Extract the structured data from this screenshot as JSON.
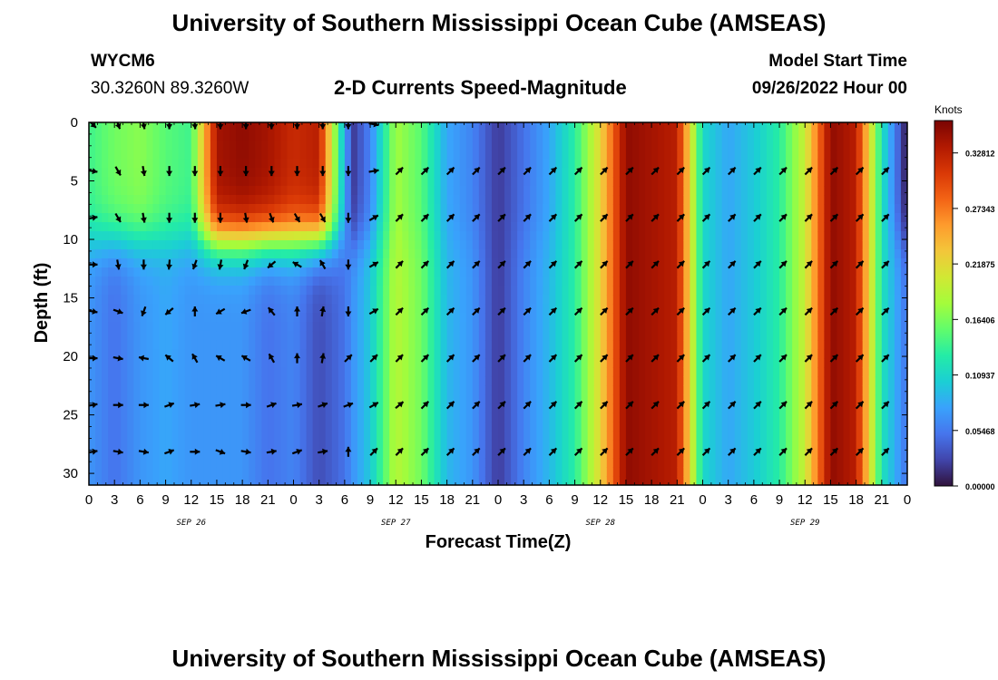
{
  "title": "University of Southern Mississippi Ocean Cube (AMSEAS)",
  "station": {
    "id": "WYCM6",
    "coords": "30.3260N  89.3260W"
  },
  "subtitle": "2-D Currents Speed-Magnitude",
  "model_start": {
    "label": "Model Start Time",
    "value": "09/26/2022 Hour 00"
  },
  "footer_title": "University of Southern Mississippi Ocean Cube (AMSEAS)",
  "colorbar": {
    "unit": "Knots",
    "min": 0.0,
    "max": 0.36,
    "tick_labels": [
      "0.32812",
      "0.27343",
      "0.21875",
      "0.16406",
      "0.10937",
      "0.05468",
      "0.00000"
    ],
    "tick_values": [
      0.32812,
      0.27343,
      0.21875,
      0.16406,
      0.10937,
      0.05468,
      0.0
    ],
    "colors": [
      "#30123b",
      "#4145ab",
      "#4675ed",
      "#39a2fc",
      "#1bcfd4",
      "#24eca6",
      "#61fc6c",
      "#a4fc3b",
      "#d1e834",
      "#f3c63a",
      "#fe9b2d",
      "#f36315",
      "#d93806",
      "#b11901",
      "#7a0403"
    ]
  },
  "chart_data": {
    "type": "heatmap",
    "title": "2-D Currents Speed-Magnitude",
    "xlabel": "Forecast Time(Z)",
    "ylabel": "Depth (ft)",
    "xlim": [
      0,
      96
    ],
    "ylim": [
      31,
      0
    ],
    "x_tick_values": [
      0,
      3,
      6,
      9,
      12,
      15,
      18,
      21,
      24,
      27,
      30,
      33,
      36,
      39,
      42,
      45,
      48,
      51,
      54,
      57,
      60,
      63,
      66,
      69,
      72,
      75,
      78,
      81,
      84,
      87,
      90,
      93,
      96
    ],
    "x_tick_labels": [
      "0",
      "3",
      "6",
      "9",
      "12",
      "15",
      "18",
      "21",
      "0",
      "3",
      "6",
      "9",
      "12",
      "15",
      "18",
      "21",
      "0",
      "3",
      "6",
      "9",
      "12",
      "15",
      "18",
      "21",
      "0",
      "3",
      "6",
      "9",
      "12",
      "15",
      "18",
      "21",
      "0"
    ],
    "y_tick_values": [
      0,
      5,
      10,
      15,
      20,
      25,
      30
    ],
    "y_tick_labels": [
      "0",
      "5",
      "10",
      "15",
      "20",
      "25",
      "30"
    ],
    "date_labels": [
      {
        "label": "SEP 26",
        "hour": 12
      },
      {
        "label": "SEP 27",
        "hour": 36
      },
      {
        "label": "SEP 28",
        "hour": 60
      },
      {
        "label": "SEP 29",
        "hour": 84
      }
    ],
    "units": "Knots",
    "speed_profile_surface_layer": {
      "depth_range_ft": [
        0,
        10
      ],
      "hours": [
        0,
        3,
        6,
        9,
        12,
        15,
        18,
        21,
        24,
        27,
        30,
        31,
        33,
        36,
        39,
        42,
        45,
        48,
        51,
        54,
        57,
        60,
        63,
        66,
        69,
        72,
        75,
        78,
        81,
        84,
        87,
        90,
        93,
        96
      ],
      "speed_kn": [
        0.14,
        0.16,
        0.17,
        0.15,
        0.14,
        0.34,
        0.35,
        0.34,
        0.32,
        0.33,
        0.08,
        0.02,
        0.06,
        0.18,
        0.15,
        0.08,
        0.06,
        0.02,
        0.05,
        0.08,
        0.13,
        0.22,
        0.35,
        0.34,
        0.33,
        0.11,
        0.08,
        0.1,
        0.13,
        0.2,
        0.35,
        0.33,
        0.12,
        0.0
      ]
    },
    "speed_profile_lower_layer": {
      "depth_range_ft": [
        10,
        31
      ],
      "hours": [
        0,
        3,
        6,
        9,
        12,
        15,
        18,
        21,
        24,
        27,
        30,
        31,
        33,
        36,
        39,
        42,
        45,
        48,
        51,
        54,
        57,
        60,
        63,
        66,
        69,
        72,
        75,
        78,
        81,
        84,
        87,
        90,
        93,
        96
      ],
      "speed_kn": [
        0.07,
        0.05,
        0.07,
        0.08,
        0.07,
        0.07,
        0.07,
        0.05,
        0.06,
        0.03,
        0.05,
        0.07,
        0.1,
        0.19,
        0.16,
        0.09,
        0.07,
        0.02,
        0.06,
        0.09,
        0.13,
        0.22,
        0.35,
        0.34,
        0.33,
        0.11,
        0.08,
        0.1,
        0.13,
        0.2,
        0.35,
        0.33,
        0.12,
        0.05
      ]
    },
    "vector_depths_ft": [
      0,
      4,
      8,
      12,
      16,
      20,
      24,
      28
    ],
    "vector_hours": [
      0,
      3,
      6,
      9,
      12,
      15,
      18,
      21,
      24,
      27,
      30,
      33,
      36,
      39,
      42,
      45,
      48,
      51,
      54,
      57,
      60,
      63,
      66,
      69,
      72,
      75,
      78,
      81,
      84,
      87,
      90,
      93
    ],
    "vector_directions_deg": {
      "row_0": [
        135,
        160,
        170,
        180,
        175,
        180,
        180,
        180,
        180,
        180,
        180,
        100,
        null,
        null,
        null,
        null,
        null,
        null,
        null,
        null,
        null,
        null,
        null,
        null,
        null,
        null,
        null,
        null,
        null,
        null,
        null,
        null
      ],
      "row_4": [
        100,
        150,
        170,
        180,
        180,
        180,
        180,
        180,
        180,
        180,
        180,
        80,
        45,
        45,
        45,
        45,
        45,
        45,
        45,
        45,
        45,
        45,
        45,
        45,
        45,
        45,
        45,
        45,
        45,
        45,
        45,
        45
      ],
      "row_8": [
        80,
        150,
        170,
        180,
        180,
        180,
        170,
        160,
        150,
        150,
        180,
        60,
        45,
        45,
        45,
        45,
        45,
        45,
        45,
        45,
        45,
        45,
        45,
        45,
        45,
        45,
        45,
        45,
        45,
        45,
        45,
        45
      ],
      "row_12": [
        90,
        170,
        180,
        185,
        200,
        190,
        200,
        230,
        300,
        330,
        180,
        60,
        45,
        45,
        45,
        45,
        45,
        45,
        45,
        45,
        45,
        45,
        45,
        45,
        45,
        45,
        45,
        45,
        45,
        45,
        45,
        45
      ],
      "row_16": [
        100,
        110,
        200,
        230,
        0,
        240,
        250,
        320,
        0,
        10,
        180,
        60,
        45,
        45,
        45,
        45,
        45,
        45,
        45,
        45,
        45,
        45,
        45,
        45,
        45,
        45,
        45,
        45,
        45,
        45,
        45,
        45
      ],
      "row_20": [
        90,
        100,
        280,
        310,
        330,
        300,
        300,
        330,
        0,
        10,
        45,
        45,
        45,
        45,
        45,
        45,
        45,
        45,
        45,
        45,
        45,
        45,
        45,
        45,
        45,
        45,
        45,
        45,
        45,
        45,
        45,
        45
      ],
      "row_24": [
        80,
        90,
        90,
        70,
        80,
        80,
        90,
        70,
        80,
        70,
        70,
        60,
        50,
        45,
        45,
        45,
        45,
        45,
        45,
        45,
        45,
        45,
        45,
        45,
        45,
        45,
        45,
        45,
        45,
        45,
        45,
        45
      ],
      "row_28": [
        80,
        100,
        100,
        70,
        90,
        110,
        100,
        80,
        70,
        80,
        0,
        45,
        45,
        45,
        45,
        45,
        45,
        45,
        45,
        45,
        45,
        45,
        45,
        45,
        45,
        45,
        45,
        45,
        45,
        45,
        45,
        45
      ]
    }
  }
}
